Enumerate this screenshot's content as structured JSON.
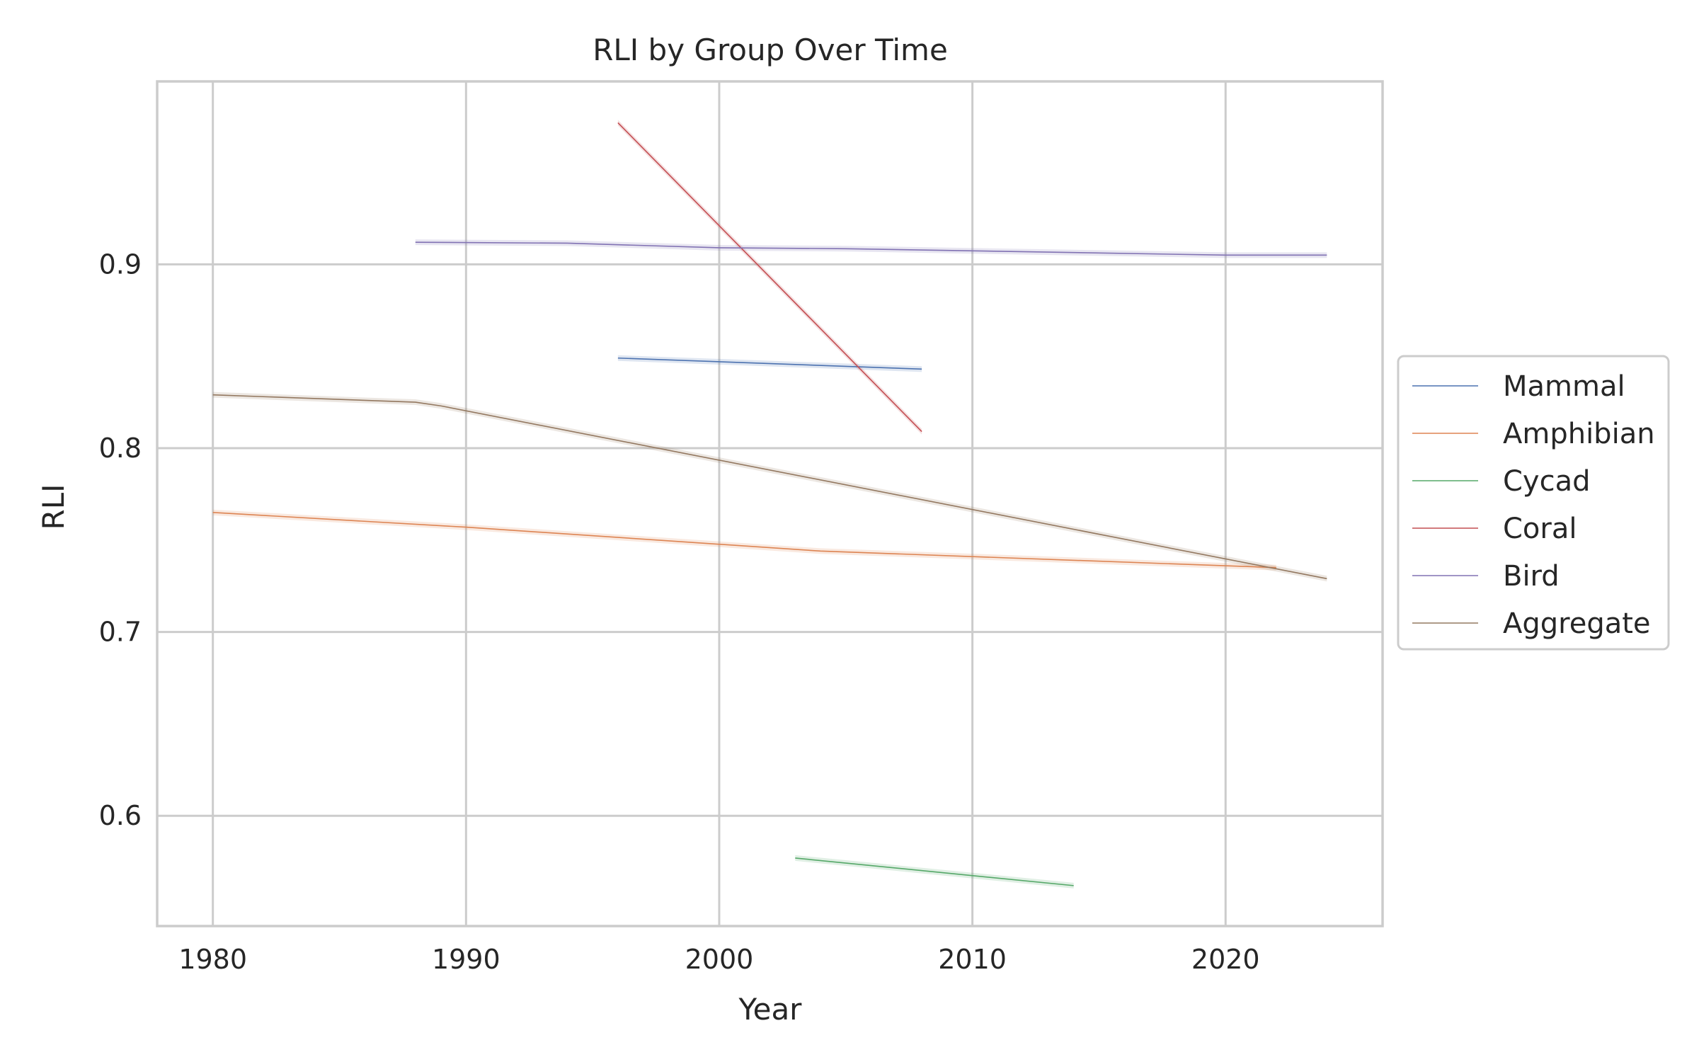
{
  "chart_data": {
    "type": "line",
    "title": "RLI by Group Over Time",
    "xlabel": "Year",
    "ylabel": "RLI",
    "xlim": [
      1977.8,
      2026.2
    ],
    "ylim": [
      0.54,
      0.9995
    ],
    "xticks": [
      1980,
      1990,
      2000,
      2010,
      2020
    ],
    "yticks": [
      0.6,
      0.7,
      0.8,
      0.9
    ],
    "ytick_labels": [
      "0.6",
      "0.7",
      "0.8",
      "0.9"
    ],
    "grid": true,
    "legend_position": "right",
    "series": [
      {
        "name": "Mammal",
        "color": "#4c72b0",
        "x": [
          1996,
          2008
        ],
        "y": [
          0.849,
          0.843
        ]
      },
      {
        "name": "Amphibian",
        "color": "#dd8452",
        "x": [
          1980,
          1990,
          2004,
          2022
        ],
        "y": [
          0.765,
          0.757,
          0.744,
          0.735
        ]
      },
      {
        "name": "Cycad",
        "color": "#55a868",
        "x": [
          2003,
          2014
        ],
        "y": [
          0.577,
          0.562
        ]
      },
      {
        "name": "Coral",
        "color": "#c44e52",
        "x": [
          1996,
          2008
        ],
        "y": [
          0.977,
          0.809
        ]
      },
      {
        "name": "Bird",
        "color": "#8172b3",
        "x": [
          1988,
          1994,
          2000,
          2005,
          2020,
          2024
        ],
        "y": [
          0.912,
          0.9115,
          0.909,
          0.9085,
          0.905,
          0.905
        ]
      },
      {
        "name": "Aggregate",
        "color": "#937860",
        "x": [
          1980,
          1988,
          1989,
          2024
        ],
        "y": [
          0.829,
          0.825,
          0.823,
          0.729
        ]
      }
    ]
  }
}
